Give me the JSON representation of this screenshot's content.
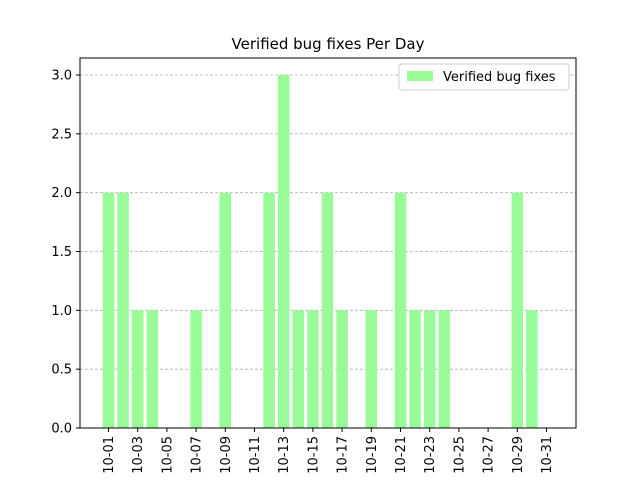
{
  "chart_data": {
    "type": "bar",
    "title": "Verified bug fixes Per Day",
    "xlabel": "",
    "ylabel": "",
    "categories": [
      "10-01",
      "10-02",
      "10-03",
      "10-04",
      "10-05",
      "10-06",
      "10-07",
      "10-08",
      "10-09",
      "10-10",
      "10-11",
      "10-12",
      "10-13",
      "10-14",
      "10-15",
      "10-16",
      "10-17",
      "10-18",
      "10-19",
      "10-20",
      "10-21",
      "10-22",
      "10-23",
      "10-24",
      "10-25",
      "10-26",
      "10-27",
      "10-28",
      "10-29",
      "10-30",
      "10-31"
    ],
    "x_tick_labels": [
      "10-01",
      "10-03",
      "10-05",
      "10-07",
      "10-09",
      "10-11",
      "10-13",
      "10-15",
      "10-17",
      "10-19",
      "10-21",
      "10-23",
      "10-25",
      "10-27",
      "10-29",
      "10-31"
    ],
    "series": [
      {
        "name": "Verified bug fixes",
        "color": "#98fb98",
        "values": [
          2,
          2,
          1,
          1,
          0,
          0,
          1,
          0,
          2,
          0,
          0,
          2,
          3,
          1,
          1,
          2,
          1,
          0,
          1,
          0,
          2,
          1,
          1,
          1,
          0,
          0,
          0,
          0,
          2,
          1,
          0
        ]
      }
    ],
    "ylim": [
      0,
      3.0
    ],
    "y_ticks": [
      "0.0",
      "0.5",
      "1.0",
      "1.5",
      "2.0",
      "2.5",
      "3.0"
    ],
    "grid": "y-dashed",
    "legend": "top-right"
  }
}
